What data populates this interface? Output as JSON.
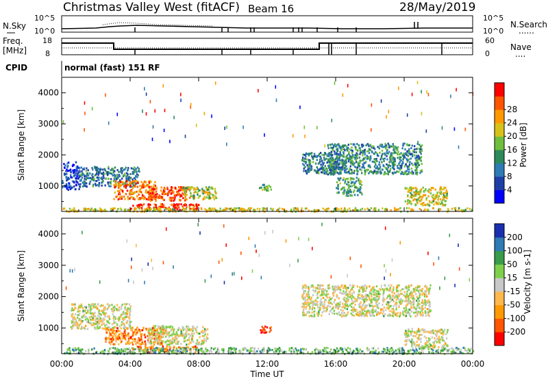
{
  "header": {
    "title": "Christmas Valley West (fitACF)",
    "beam": "Beam 16",
    "date": "28/May/2019"
  },
  "panels": {
    "nsky": {
      "label": "N.Sky",
      "left_ticks": [
        "10^5",
        "10^0"
      ],
      "right_ticks": [
        "10^5",
        "10^0"
      ],
      "right_label": "N.Search",
      "right_legend": "......"
    },
    "freq": {
      "label1": "Freq.",
      "label2": "[MHz]",
      "left_ticks": [
        "18",
        "8"
      ],
      "right_ticks": [
        "60",
        "0"
      ],
      "right_label": "Nave",
      "right_legend": "...."
    },
    "cpid": {
      "label": "CPID",
      "text": "normal (fast) 151 RF"
    }
  },
  "chart_data": [
    {
      "type": "heatmap",
      "name": "power",
      "ylabel": "Slant Range [km]",
      "xlabel": "Time UT",
      "x_ticks": [
        "00:00",
        "04:00",
        "08:00",
        "12:00",
        "16:00",
        "20:00",
        "00:00"
      ],
      "xlim_hours": [
        0,
        24
      ],
      "y_ticks": [
        1000,
        2000,
        3000,
        4000
      ],
      "ylim_km": [
        180,
        4500
      ],
      "colorbar": {
        "label": "Power [dB]",
        "ticks": [
          "4",
          "8",
          "12",
          "16",
          "20",
          "24",
          "28"
        ],
        "range": [
          0,
          30
        ]
      },
      "colors": [
        "#0000ff",
        "#1e3fa8",
        "#2e7bb5",
        "#2e8a5a",
        "#6fbf3e",
        "#d8c21a",
        "#ff9900",
        "#ff5500",
        "#ff0000"
      ],
      "regions": [
        {
          "t": [
            0.0,
            1.0
          ],
          "r": [
            900,
            1800
          ],
          "level": 0.15
        },
        {
          "t": [
            1.0,
            4.5
          ],
          "r": [
            1000,
            1650
          ],
          "level": 0.3
        },
        {
          "t": [
            3.0,
            5.5
          ],
          "r": [
            600,
            1200
          ],
          "level": 0.78
        },
        {
          "t": [
            5.0,
            7.5
          ],
          "r": [
            550,
            1000
          ],
          "level": 0.85
        },
        {
          "t": [
            7.0,
            9.0
          ],
          "r": [
            600,
            1000
          ],
          "level": 0.55
        },
        {
          "t": [
            4.0,
            8.0
          ],
          "r": [
            250,
            450
          ],
          "level": 0.92
        },
        {
          "t": [
            11.5,
            12.2
          ],
          "r": [
            880,
            1080
          ],
          "level": 0.5
        },
        {
          "t": [
            14.0,
            16.5
          ],
          "r": [
            1400,
            2100
          ],
          "level": 0.3
        },
        {
          "t": [
            15.5,
            21.0
          ],
          "r": [
            1400,
            2400
          ],
          "level": 0.35
        },
        {
          "t": [
            16.0,
            17.5
          ],
          "r": [
            700,
            1300
          ],
          "level": 0.4
        },
        {
          "t": [
            20.0,
            22.5
          ],
          "r": [
            400,
            1000
          ],
          "level": 0.6
        },
        {
          "t": [
            0.0,
            24.0
          ],
          "r": [
            200,
            320
          ],
          "level": 0.6
        }
      ]
    },
    {
      "type": "heatmap",
      "name": "velocity",
      "ylabel": "Slant Range [km]",
      "xlabel": "Time UT",
      "x_ticks": [
        "00:00",
        "04:00",
        "08:00",
        "12:00",
        "16:00",
        "20:00",
        "00:00"
      ],
      "xlim_hours": [
        0,
        24
      ],
      "y_ticks": [
        1000,
        2000,
        3000,
        4000
      ],
      "ylim_km": [
        180,
        4500
      ],
      "colorbar": {
        "label": "Velocity [m s-1]",
        "ticks": [
          "200",
          "100",
          "50",
          "15",
          "-15",
          "-50",
          "-100",
          "-200"
        ],
        "range": [
          -250,
          250
        ]
      },
      "colors": [
        "#ff0000",
        "#ff5500",
        "#ff9900",
        "#ffb84d",
        "#c8c8c8",
        "#7ed04c",
        "#3a9b4a",
        "#2e7bb5",
        "#1a2fb0"
      ],
      "regions": [
        {
          "t": [
            0.5,
            4.0
          ],
          "r": [
            1000,
            1800
          ],
          "level": 0.5
        },
        {
          "t": [
            2.5,
            6.0
          ],
          "r": [
            500,
            1050
          ],
          "level": 0.25
        },
        {
          "t": [
            5.0,
            8.5
          ],
          "r": [
            500,
            1100
          ],
          "level": 0.5
        },
        {
          "t": [
            4.0,
            8.0
          ],
          "r": [
            250,
            450
          ],
          "level": 0.25
        },
        {
          "t": [
            11.5,
            12.2
          ],
          "r": [
            880,
            1080
          ],
          "level": 0.1
        },
        {
          "t": [
            14.0,
            21.5
          ],
          "r": [
            1400,
            2400
          ],
          "level": 0.5
        },
        {
          "t": [
            20.0,
            22.5
          ],
          "r": [
            400,
            1000
          ],
          "level": 0.5
        },
        {
          "t": [
            0.0,
            24.0
          ],
          "r": [
            200,
            400
          ],
          "level": 0.65
        }
      ]
    }
  ]
}
